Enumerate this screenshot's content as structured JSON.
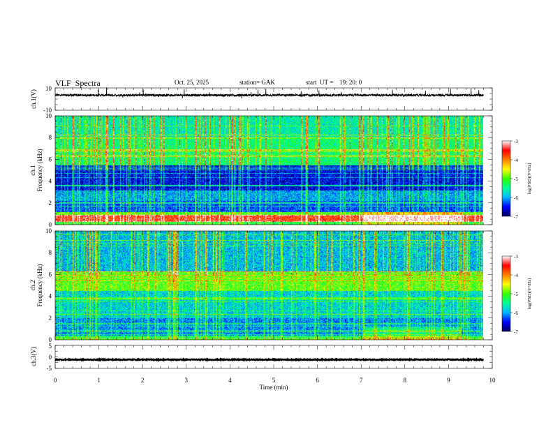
{
  "header": {
    "title": "VLF  Spectra",
    "date": "Oct. 25, 2025",
    "station": "station= GAK",
    "start": "start  UT =    19: 20: 0"
  },
  "chart_data": [
    {
      "type": "line",
      "panel": "ch1-waveform",
      "ylabel": "ch.1(V)",
      "ylim": [
        -10,
        10
      ],
      "ytick_labels": [
        "10",
        "-10"
      ],
      "xlim": [
        0,
        10
      ],
      "baseline": 3.5,
      "color": "#000000"
    },
    {
      "type": "heatmap",
      "panel": "ch1-spectrogram",
      "ylabel": [
        "ch.1",
        "Frequency  (kHz)"
      ],
      "ylim": [
        0,
        10
      ],
      "ytick_labels": [
        "0",
        "2",
        "4",
        "6",
        "8",
        "10"
      ],
      "xlim": [
        0,
        10
      ],
      "data_end_min": 9.8,
      "colorbar": {
        "label": "log(PSD)(V²/Hz)",
        "range": [
          -7,
          -3
        ],
        "tick_labels": [
          "-3",
          "-4",
          "-5",
          "-6",
          "-7"
        ],
        "colors": [
          "#00005a",
          "#0000ff",
          "#00b4ff",
          "#00ff96",
          "#32ff00",
          "#ffff00",
          "#ff8000",
          "#ff0000",
          "#ffffff"
        ]
      },
      "bands": [
        {
          "f": [
            0,
            0.3
          ],
          "level": -5.2
        },
        {
          "f": [
            0.3,
            0.9
          ],
          "level": -3.6
        },
        {
          "f": [
            0.9,
            1.2
          ],
          "level": -5.0
        },
        {
          "f": [
            1.2,
            2.2
          ],
          "level": -6.3
        },
        {
          "f": [
            2.2,
            3.2
          ],
          "level": -6.0
        },
        {
          "f": [
            3.2,
            5.5
          ],
          "level": -6.6
        },
        {
          "f": [
            5.5,
            8.0
          ],
          "level": -5.4
        },
        {
          "f": [
            8.0,
            10.0
          ],
          "level": -5.6
        }
      ]
    },
    {
      "type": "heatmap",
      "panel": "ch2-spectrogram",
      "ylabel": [
        "ch.2",
        "Frequency  (kHz)"
      ],
      "ylim": [
        0,
        10
      ],
      "ytick_labels": [
        "0",
        "2",
        "4",
        "6",
        "8",
        "10"
      ],
      "xlim": [
        0,
        10
      ],
      "data_end_min": 9.8,
      "colorbar": {
        "label": "log(PSD)(V²/Hz)",
        "range": [
          -7,
          -3
        ],
        "tick_labels": [
          "-3",
          "-4",
          "-5",
          "-6",
          "-7"
        ],
        "colors": [
          "#00005a",
          "#0000ff",
          "#00b4ff",
          "#00ff96",
          "#32ff00",
          "#ffff00",
          "#ff8000",
          "#ff0000",
          "#ffffff"
        ]
      },
      "bands": [
        {
          "f": [
            0,
            0.4
          ],
          "level": -5.4
        },
        {
          "f": [
            0.4,
            2.0
          ],
          "level": -6.1
        },
        {
          "f": [
            2.0,
            4.5
          ],
          "level": -5.8
        },
        {
          "f": [
            4.5,
            6.3
          ],
          "level": -5.0
        },
        {
          "f": [
            6.3,
            10.0
          ],
          "level": -5.9
        }
      ]
    },
    {
      "type": "line",
      "panel": "ch3-waveform",
      "ylabel": "ch.3(V)",
      "ylim": [
        -5,
        5
      ],
      "ytick_labels": [
        "5",
        "0",
        "-5"
      ],
      "xlim": [
        0,
        10
      ],
      "baseline": -1.2,
      "color": "#000000",
      "xlabel": "Time  (min)",
      "xtick_labels": [
        "0",
        "1",
        "2",
        "3",
        "4",
        "5",
        "6",
        "7",
        "8",
        "9",
        "10"
      ]
    }
  ]
}
